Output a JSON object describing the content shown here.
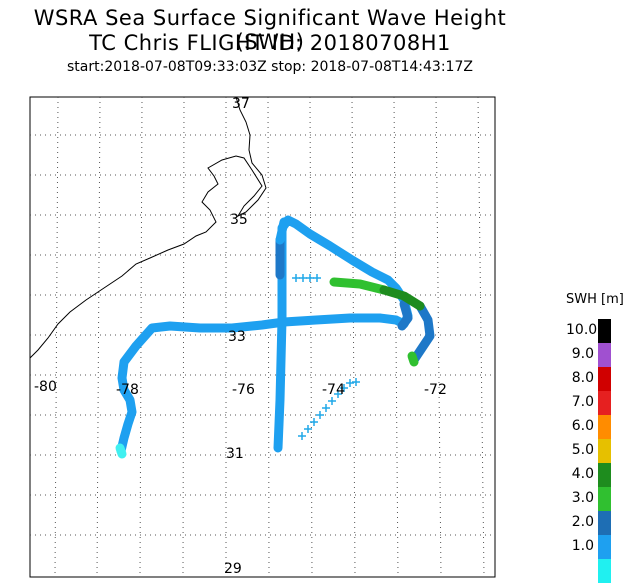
{
  "title": {
    "line1": "WSRA Sea Surface Significant Wave Height (SWH)",
    "line2": "TC Chris FLIGHT ID: 20180708H1",
    "line3": "start:2018-07-08T09:33:03Z stop: 2018-07-08T14:43:17Z"
  },
  "axes": {
    "lon_labels": [
      "-80",
      "-78",
      "-76",
      "-74",
      "-72"
    ],
    "lat_labels": [
      "37",
      "35",
      "33",
      "31",
      "29"
    ]
  },
  "legend": {
    "title": "SWH [m]",
    "entries": [
      {
        "label": "10.0",
        "color": "#000000"
      },
      {
        "label": "9.0",
        "color": "#a050d0"
      },
      {
        "label": "8.0",
        "color": "#d00000"
      },
      {
        "label": "7.0",
        "color": "#e62020"
      },
      {
        "label": "6.0",
        "color": "#ff8c00"
      },
      {
        "label": "5.0",
        "color": "#e6c000"
      },
      {
        "label": "4.0",
        "color": "#1e8c1e"
      },
      {
        "label": "3.0",
        "color": "#30c030"
      },
      {
        "label": "2.0",
        "color": "#1e6eb4"
      },
      {
        "label": "1.0",
        "color": "#1ea0f0"
      },
      {
        "label": "",
        "color": "#20f0f0"
      }
    ]
  },
  "colors": {
    "track_light": "#1ea0f0",
    "track_dark": "#1e78c8",
    "track_green": "#30c030",
    "track_darkgreen": "#1e8c1e",
    "track_cyan": "#40f0f0",
    "cross": "#20a8e8"
  }
}
